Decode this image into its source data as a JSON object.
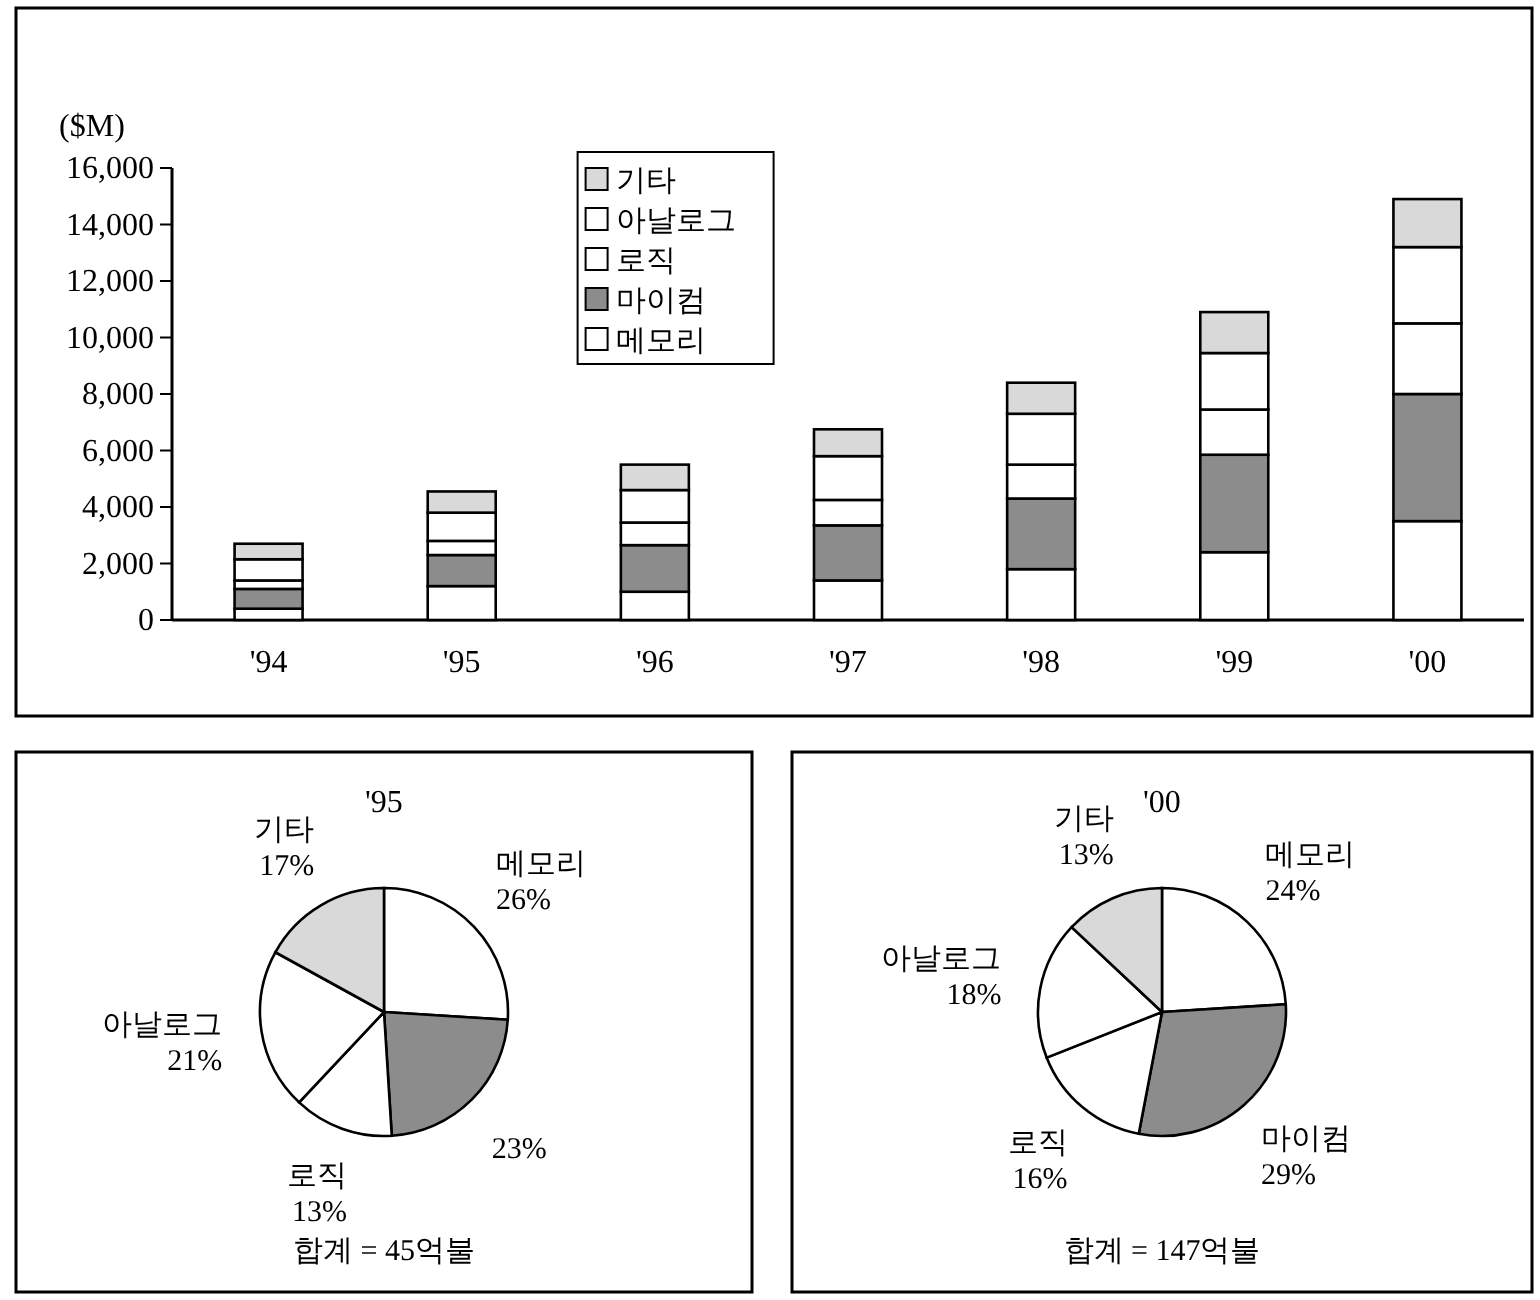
{
  "chart_data": [
    {
      "type": "bar",
      "stacked": true,
      "ylabel": "($M)",
      "categories": [
        "'94",
        "'95",
        "'96",
        "'97",
        "'98",
        "'99",
        "'00"
      ],
      "series": [
        {
          "name": "메모리",
          "color": "#ffffff",
          "values": [
            400,
            1200,
            1000,
            1400,
            1800,
            2400,
            3500
          ]
        },
        {
          "name": "마이컴",
          "color": "#8c8c8c",
          "values": [
            700,
            1100,
            1650,
            1950,
            2500,
            3450,
            4500
          ]
        },
        {
          "name": "로직",
          "color": "#ffffff",
          "values": [
            300,
            500,
            800,
            900,
            1200,
            1600,
            2500
          ]
        },
        {
          "name": "아날로그",
          "color": "#ffffff",
          "values": [
            750,
            1000,
            1150,
            1550,
            1800,
            2000,
            2700
          ]
        },
        {
          "name": "기타",
          "color": "#d9d9d9",
          "values": [
            550,
            750,
            900,
            950,
            1100,
            1450,
            1700
          ]
        }
      ],
      "ylim": [
        0,
        16000
      ],
      "yticks": [
        0,
        {
          "value": 2000,
          "label": "2,000"
        },
        {
          "value": 4000,
          "label": "4,000"
        },
        {
          "value": 6000,
          "label": "6,000"
        },
        {
          "value": 8000,
          "label": "8,000"
        },
        {
          "value": 10000,
          "label": "10,000"
        },
        {
          "value": 12000,
          "label": "12,000"
        },
        {
          "value": 14000,
          "label": "14,000"
        },
        {
          "value": 16000,
          "label": "16,000"
        }
      ],
      "legend": "top"
    },
    {
      "type": "pie",
      "title": "'95",
      "categories": [
        "메모리",
        null,
        "로직",
        "아날로그",
        "기타"
      ],
      "values": [
        26,
        23,
        13,
        21,
        17
      ],
      "colors": [
        "#ffffff",
        "#8c8c8c",
        "#ffffff",
        "#ffffff",
        "#d9d9d9"
      ],
      "value_labels": [
        "26%",
        "23%",
        "13%",
        "21%",
        "17%"
      ],
      "annotations": [
        "합계 = 45억불"
      ]
    },
    {
      "type": "pie",
      "title": "'00",
      "categories": [
        "메모리",
        "마이컴",
        "로직",
        "아날로그",
        "기타"
      ],
      "values": [
        24,
        29,
        16,
        18,
        13
      ],
      "colors": [
        "#ffffff",
        "#8c8c8c",
        "#ffffff",
        "#ffffff",
        "#d9d9d9"
      ],
      "value_labels": [
        "24%",
        "29%",
        "16%",
        "18%",
        "13%"
      ],
      "annotations": [
        "합계 = 147억불"
      ]
    }
  ]
}
